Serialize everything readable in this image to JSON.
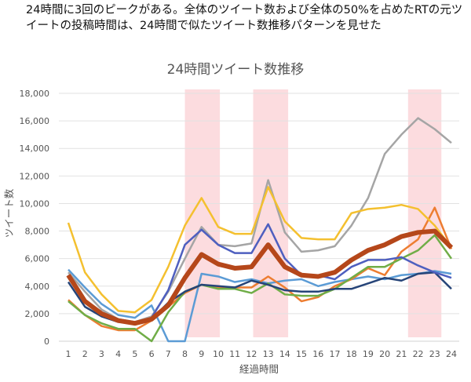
{
  "caption": "24時間に3回のピークがある。全体のツイート数および全体の50%を占めたRTの元ツイートの投稿時間は、24時間で似たツイート数推移パターンを見せた",
  "chart_data": {
    "type": "line",
    "title": "24時間ツイート数推移",
    "xlabel": "経過時間",
    "ylabel": "ツイート数",
    "x": [
      1,
      2,
      3,
      4,
      5,
      6,
      7,
      8,
      9,
      10,
      11,
      12,
      13,
      14,
      15,
      16,
      17,
      18,
      19,
      20,
      21,
      22,
      23,
      24
    ],
    "ylim": [
      0,
      18000
    ],
    "yticks": [
      "0",
      "2,000",
      "4,000",
      "6,000",
      "8,000",
      "10,000",
      "12,000",
      "14,000",
      "16,000",
      "18,000"
    ],
    "grid": true,
    "legend": "none",
    "highlight_ranges": [
      [
        8,
        10.1
      ],
      [
        12.1,
        14.2
      ],
      [
        21.4,
        23.4
      ]
    ],
    "highlight_color": "#fcdcdf",
    "series": [
      {
        "color": "#5b9bd5",
        "width": 2.5,
        "values": [
          5200,
          3900,
          2700,
          1900,
          1700,
          2600,
          0,
          0,
          4900,
          4700,
          4300,
          4500,
          4200,
          4400,
          4500,
          4000,
          4300,
          4500,
          4700,
          4500,
          4800,
          4900,
          5100,
          4900
        ]
      },
      {
        "color": "#ed7d31",
        "width": 2.5,
        "values": [
          3000,
          1900,
          1100,
          800,
          800,
          1500,
          2500,
          3500,
          4100,
          3900,
          3900,
          3900,
          4700,
          3900,
          2900,
          3200,
          4000,
          4500,
          5300,
          4800,
          6500,
          7400,
          9700,
          6700
        ]
      },
      {
        "color": "#70ad47",
        "width": 2.5,
        "values": [
          2900,
          1900,
          1300,
          900,
          900,
          0,
          2100,
          3600,
          4100,
          3800,
          3800,
          3500,
          4200,
          3400,
          3300,
          3300,
          3800,
          4600,
          5400,
          5400,
          6000,
          6600,
          7700,
          6000
        ]
      },
      {
        "color": "#264478",
        "width": 2.5,
        "values": [
          4300,
          2500,
          1800,
          1400,
          1300,
          1600,
          2800,
          3600,
          4100,
          4000,
          3900,
          4400,
          4100,
          3700,
          3600,
          3600,
          3800,
          3800,
          4200,
          4600,
          4400,
          4900,
          5000,
          3800
        ]
      },
      {
        "color": "#a5a5a5",
        "width": 2.5,
        "values": [
          5000,
          3600,
          2300,
          1600,
          1400,
          1800,
          3600,
          6000,
          8300,
          7000,
          6900,
          7100,
          11700,
          7900,
          6500,
          6600,
          6900,
          8400,
          10400,
          13600,
          15000,
          16200,
          15400,
          14400
        ]
      },
      {
        "color": "#4e5fbf",
        "width": 2.5,
        "values": [
          4800,
          3000,
          2000,
          1500,
          1300,
          1700,
          3700,
          7000,
          8100,
          7000,
          6400,
          6400,
          8500,
          6000,
          4800,
          4800,
          4500,
          5400,
          5900,
          5900,
          6100,
          5500,
          5000,
          4600
        ]
      },
      {
        "color": "#f4c02f",
        "width": 2.5,
        "values": [
          8600,
          5000,
          3400,
          2200,
          2100,
          3000,
          5400,
          8400,
          10400,
          8300,
          7800,
          7800,
          11200,
          8700,
          7500,
          7400,
          7400,
          9300,
          9600,
          9700,
          9900,
          9600,
          8400,
          6800
        ]
      },
      {
        "color": "#b5471a",
        "width": 6,
        "values": [
          4800,
          2900,
          2000,
          1500,
          1300,
          1600,
          2600,
          4600,
          6300,
          5600,
          5300,
          5400,
          7000,
          5400,
          4800,
          4700,
          5000,
          5900,
          6600,
          7000,
          7600,
          7900,
          8000,
          6800
        ]
      }
    ]
  }
}
